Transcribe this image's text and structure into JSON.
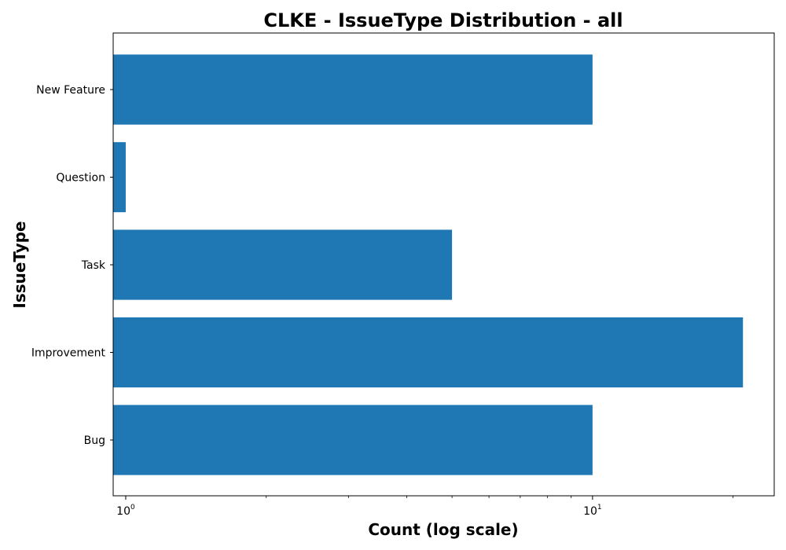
{
  "chart_data": {
    "type": "bar",
    "orientation": "horizontal",
    "title": "CLKE - IssueType Distribution - all",
    "xlabel": "Count (log scale)",
    "ylabel": "IssueType",
    "x_scale": "log",
    "xlim": [
      0.94,
      24.5
    ],
    "categories": [
      "Bug",
      "Improvement",
      "Task",
      "Question",
      "New Feature"
    ],
    "values": [
      10,
      21,
      5,
      1,
      10
    ],
    "x_major_ticks": [
      {
        "value": 1,
        "base": "10",
        "exp": "0"
      },
      {
        "value": 10,
        "base": "10",
        "exp": "1"
      }
    ],
    "x_minor_ticks": [
      2,
      3,
      4,
      5,
      6,
      7,
      8,
      9,
      20
    ],
    "bar_color": "#1f77b4",
    "grid": false,
    "legend": "none"
  }
}
